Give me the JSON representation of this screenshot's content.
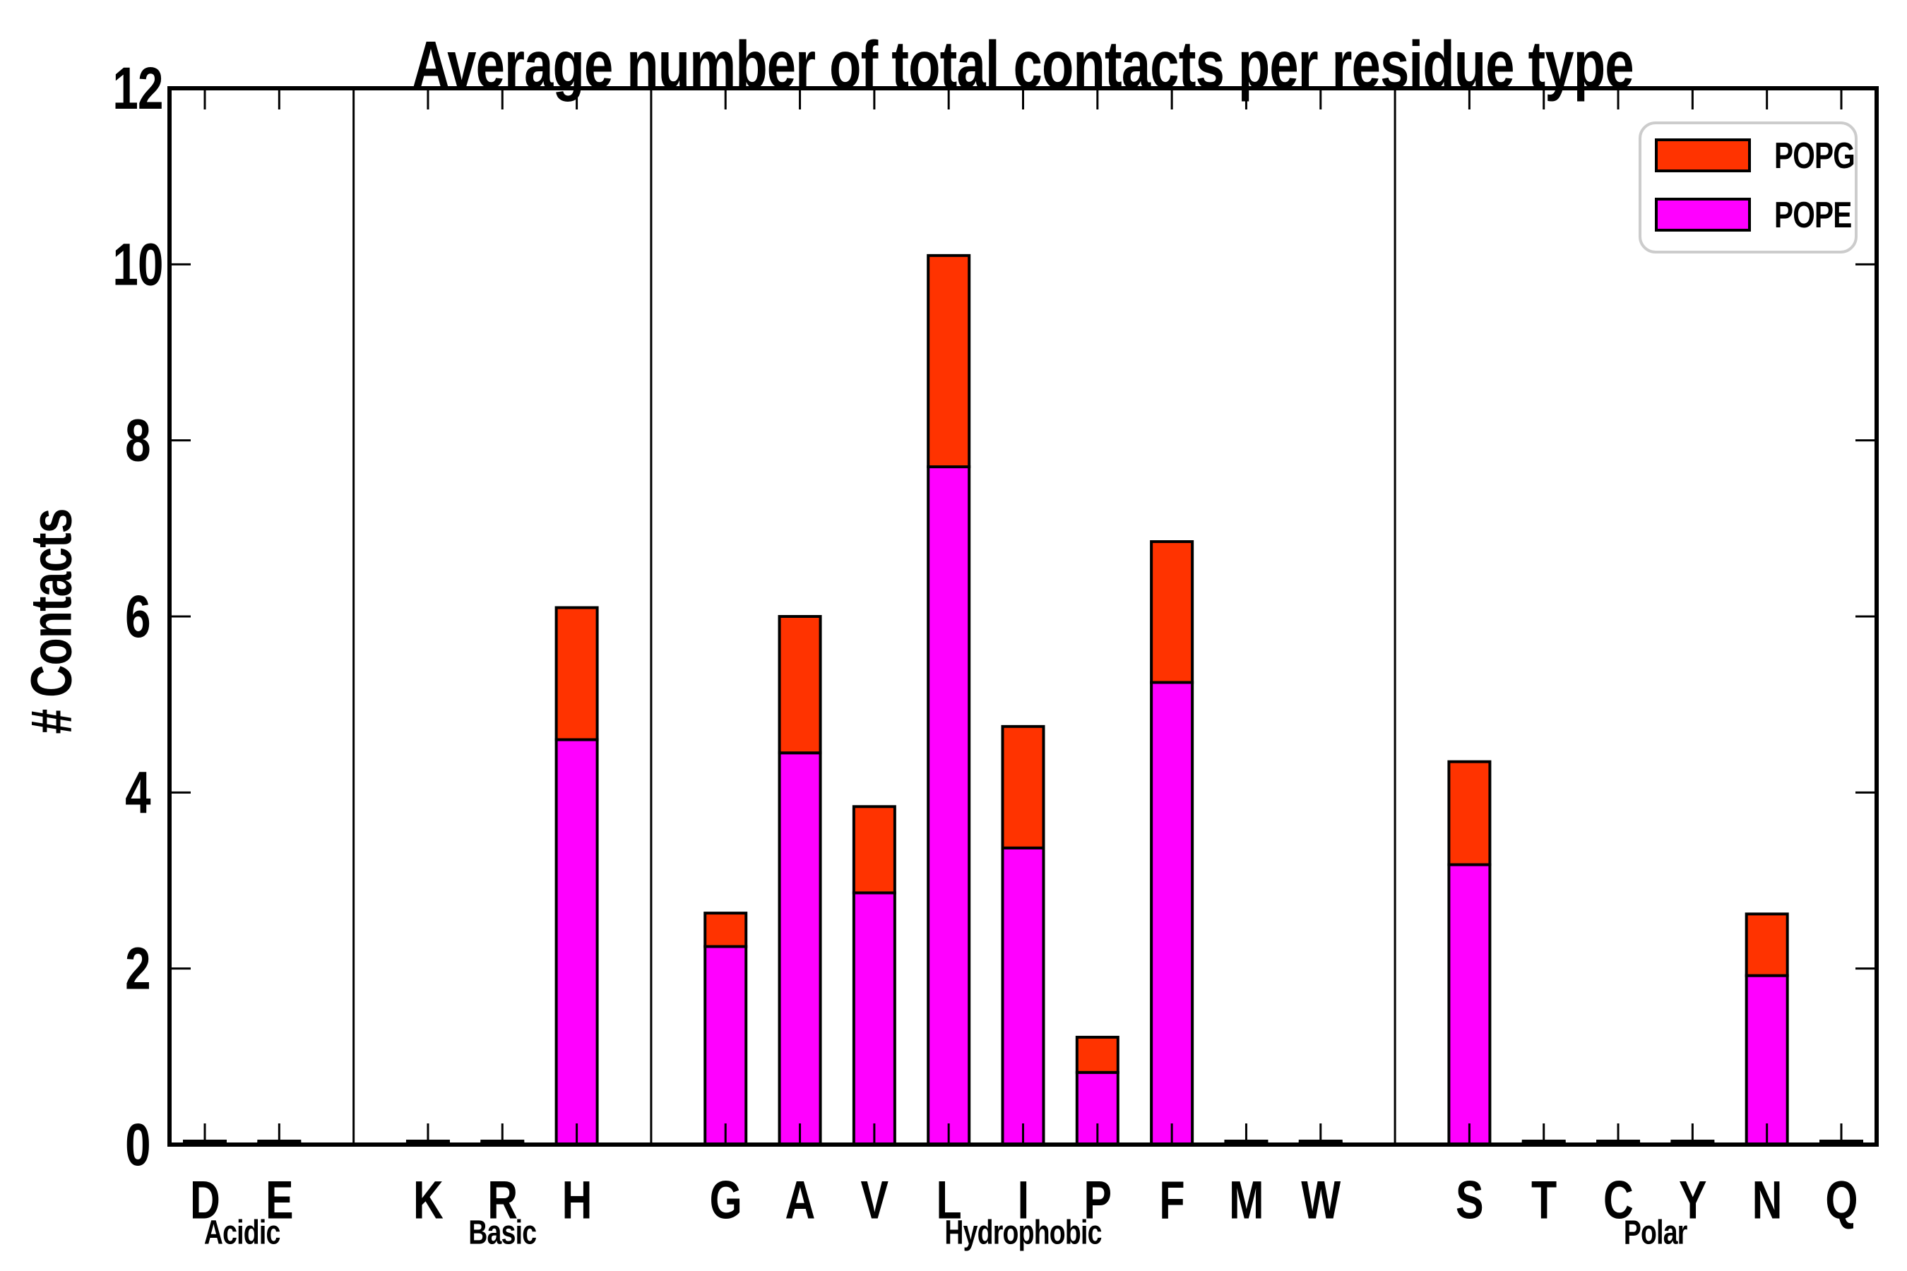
{
  "figure": {
    "background": "#ffffff",
    "frame_color": "#000000",
    "divider_color": "#000000"
  },
  "chart_data": {
    "type": "bar",
    "stacked": true,
    "title": "Average number of total contacts per residue type",
    "ylabel": "# Contacts",
    "xlabel": "",
    "ylim": [
      0,
      12
    ],
    "yticks": [
      0,
      2,
      4,
      6,
      8,
      10,
      12
    ],
    "grid": false,
    "tick_direction": "in",
    "stack_order_bottom_to_top": [
      "POPE",
      "POPG"
    ],
    "legend": {
      "position": "upper right",
      "entries": [
        {
          "name": "POPG",
          "color": "#ff3300"
        },
        {
          "name": "POPE",
          "color": "#ff00ff"
        }
      ]
    },
    "bar_edge_color": "#000000",
    "groups": [
      {
        "label": "Acidic",
        "bars": [
          {
            "residue": "D",
            "POPE": 0.02,
            "POPG": 0.02
          },
          {
            "residue": "E",
            "POPE": 0.02,
            "POPG": 0.02
          }
        ]
      },
      {
        "label": "Basic",
        "bars": [
          {
            "residue": "K",
            "POPE": 0.02,
            "POPG": 0.02
          },
          {
            "residue": "R",
            "POPE": 0.02,
            "POPG": 0.02
          },
          {
            "residue": "H",
            "POPE": 4.6,
            "POPG": 1.5
          }
        ]
      },
      {
        "label": "Hydrophobic",
        "bars": [
          {
            "residue": "G",
            "POPE": 2.25,
            "POPG": 0.38
          },
          {
            "residue": "A",
            "POPE": 4.45,
            "POPG": 1.55
          },
          {
            "residue": "V",
            "POPE": 2.86,
            "POPG": 0.98
          },
          {
            "residue": "L",
            "POPE": 7.7,
            "POPG": 2.4
          },
          {
            "residue": "I",
            "POPE": 3.37,
            "POPG": 1.38
          },
          {
            "residue": "P",
            "POPE": 0.82,
            "POPG": 0.4
          },
          {
            "residue": "F",
            "POPE": 5.25,
            "POPG": 1.6
          },
          {
            "residue": "M",
            "POPE": 0.02,
            "POPG": 0.02
          },
          {
            "residue": "W",
            "POPE": 0.02,
            "POPG": 0.02
          }
        ]
      },
      {
        "label": "Polar",
        "bars": [
          {
            "residue": "S",
            "POPE": 3.18,
            "POPG": 1.17
          },
          {
            "residue": "T",
            "POPE": 0.02,
            "POPG": 0.02
          },
          {
            "residue": "C",
            "POPE": 0.02,
            "POPG": 0.02
          },
          {
            "residue": "Y",
            "POPE": 0.02,
            "POPG": 0.02
          },
          {
            "residue": "N",
            "POPE": 1.92,
            "POPG": 0.7
          },
          {
            "residue": "Q",
            "POPE": 0.02,
            "POPG": 0.02
          }
        ]
      }
    ]
  }
}
